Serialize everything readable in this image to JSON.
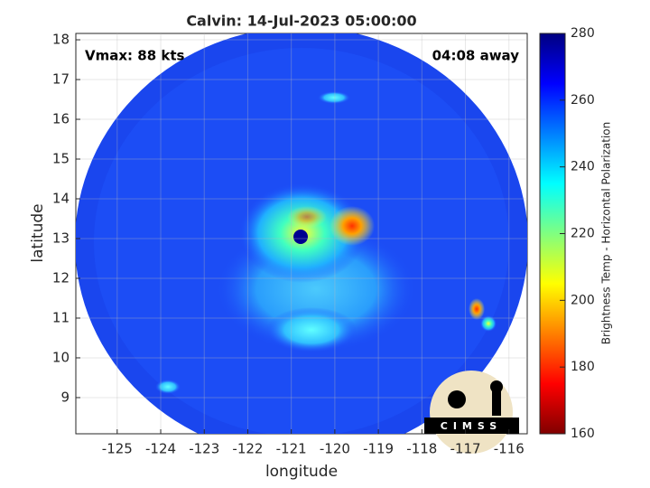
{
  "title": "Calvin: 14-Jul-2023 05:00:00",
  "annotations": {
    "vmax": "Vmax: 88 kts",
    "time_away": "04:08 away"
  },
  "x_axis": {
    "label": "longitude",
    "lim": [
      -125.95,
      -115.58
    ],
    "ticks": [
      -125,
      -124,
      -123,
      -122,
      -121,
      -120,
      -119,
      -118,
      -117,
      -116
    ]
  },
  "y_axis": {
    "label": "latitude",
    "lim": [
      8.09,
      18.16
    ],
    "ticks": [
      9,
      10,
      11,
      12,
      13,
      14,
      15,
      16,
      17,
      18
    ]
  },
  "colorbar": {
    "label": "Brightness Temp - Horizontal Polarization",
    "lim": [
      160,
      280
    ],
    "ticks": [
      160,
      180,
      200,
      220,
      240,
      260,
      280
    ]
  },
  "logo": {
    "text": "CIMSS"
  }
}
